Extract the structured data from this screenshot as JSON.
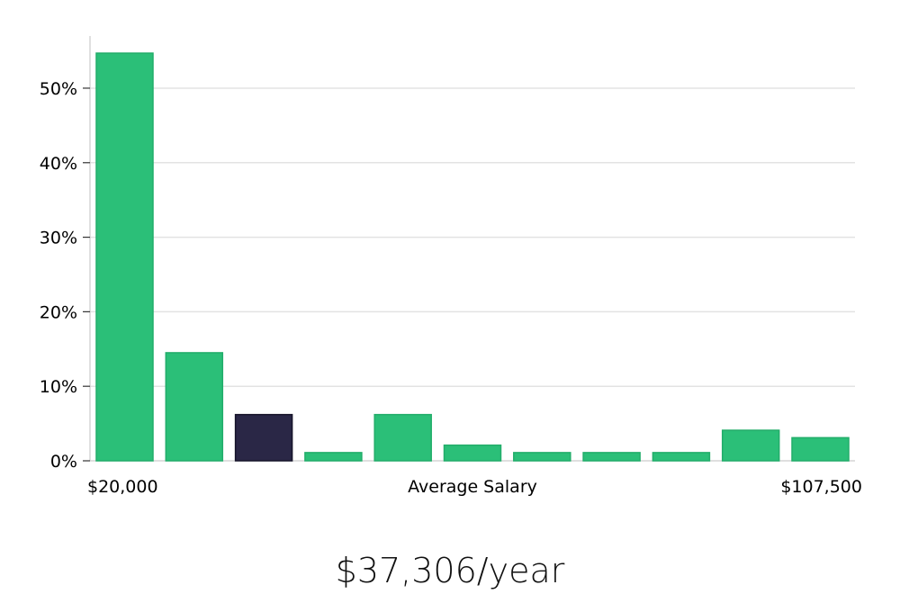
{
  "chart_data": {
    "type": "bar",
    "values": [
      54.7,
      14.5,
      6.2,
      1.1,
      6.2,
      2.1,
      1.1,
      1.1,
      1.1,
      4.1,
      3.1
    ],
    "highlight_index": 2,
    "ylim": [
      0,
      57
    ],
    "yticks": [
      0,
      10,
      20,
      30,
      40,
      50
    ],
    "ytick_labels": [
      "0%",
      "10%",
      "20%",
      "30%",
      "40%",
      "50%"
    ],
    "x_range_labels": {
      "min": "$20,000",
      "max": "$107,500"
    },
    "xlabel": "Average Salary",
    "grid": true,
    "colors": {
      "bar": "#2bbf78",
      "bar_edge": "#22ad6a",
      "highlight": "#2a2746",
      "grid": "#e3e3e3",
      "axis": "#cccccc"
    }
  },
  "summary": {
    "salary": "$37,306/year"
  }
}
